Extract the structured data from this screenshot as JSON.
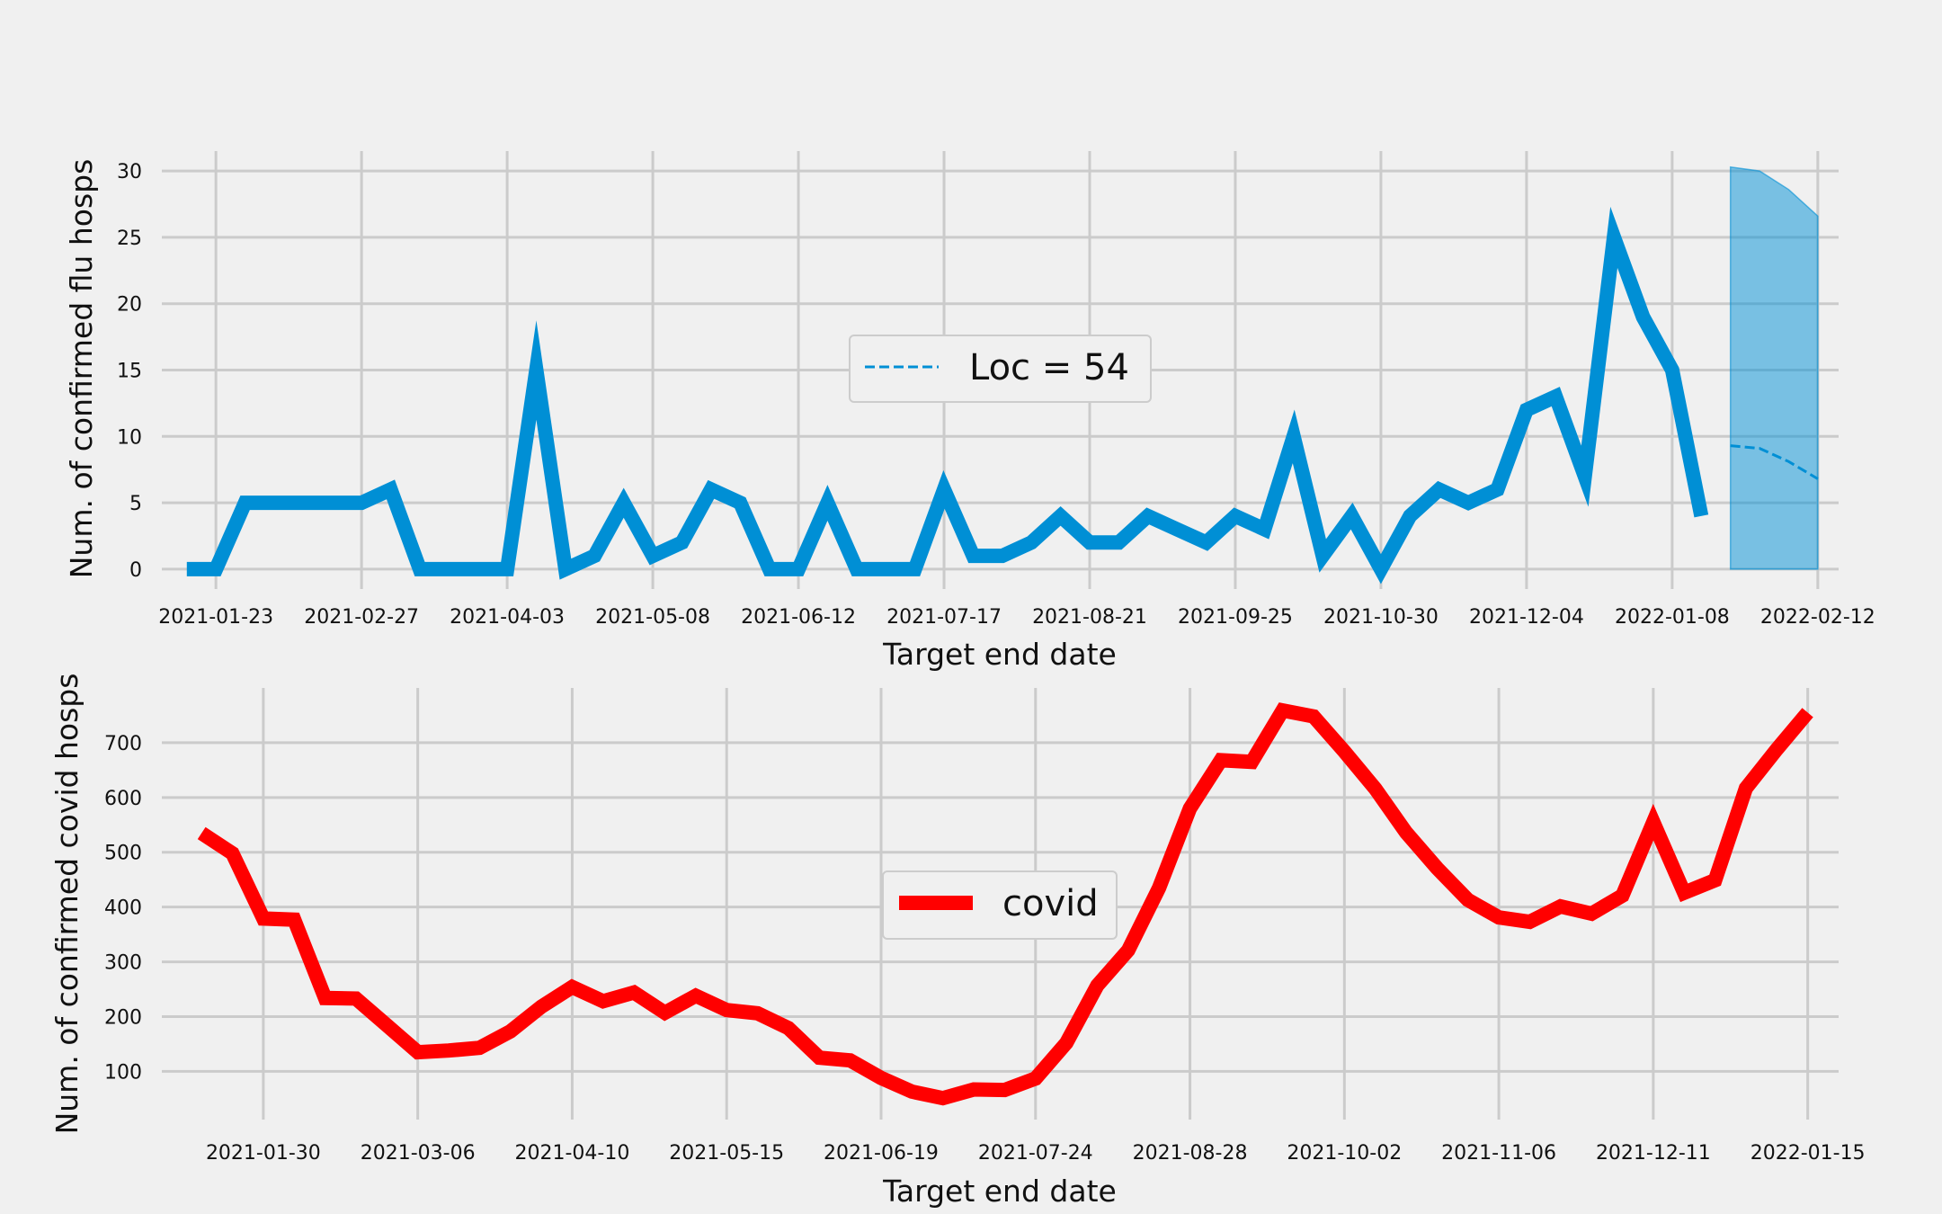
{
  "chart_data": [
    {
      "type": "line",
      "xlabel": "Target end date",
      "ylabel": "Num. of confirmed flu hosps",
      "ylim": [
        -1.5,
        31.5
      ],
      "xlim": [
        "2021-01-10",
        "2022-02-17"
      ],
      "yticks": [
        0,
        5,
        10,
        15,
        20,
        25,
        30
      ],
      "xticks": [
        "2021-01-23",
        "2021-02-27",
        "2021-04-03",
        "2021-05-08",
        "2021-06-12",
        "2021-07-17",
        "2021-08-21",
        "2021-09-25",
        "2021-10-30",
        "2021-12-04",
        "2022-01-08",
        "2022-02-12"
      ],
      "grid": true,
      "legend_position": "center",
      "series": [
        {
          "color": "#008fd5",
          "style": "solid",
          "x": [
            "2021-01-16",
            "2021-01-23",
            "2021-01-30",
            "2021-02-06",
            "2021-02-13",
            "2021-02-20",
            "2021-02-27",
            "2021-03-06",
            "2021-03-13",
            "2021-03-20",
            "2021-03-27",
            "2021-04-03",
            "2021-04-10",
            "2021-04-17",
            "2021-04-24",
            "2021-05-01",
            "2021-05-08",
            "2021-05-15",
            "2021-05-22",
            "2021-05-29",
            "2021-06-05",
            "2021-06-12",
            "2021-06-19",
            "2021-06-26",
            "2021-07-03",
            "2021-07-10",
            "2021-07-17",
            "2021-07-24",
            "2021-07-31",
            "2021-08-07",
            "2021-08-14",
            "2021-08-21",
            "2021-08-28",
            "2021-09-04",
            "2021-09-11",
            "2021-09-18",
            "2021-09-25",
            "2021-10-02",
            "2021-10-09",
            "2021-10-16",
            "2021-10-23",
            "2021-10-30",
            "2021-11-06",
            "2021-11-13",
            "2021-11-20",
            "2021-11-27",
            "2021-12-04",
            "2021-12-11",
            "2021-12-18",
            "2021-12-25",
            "2022-01-01",
            "2022-01-08",
            "2022-01-15"
          ],
          "values": [
            0,
            0,
            5,
            5,
            5,
            5,
            5,
            6,
            0,
            0,
            0,
            0,
            15,
            0,
            1,
            5,
            1,
            2,
            6,
            5,
            0,
            0,
            5,
            0,
            0,
            0,
            6,
            1,
            1,
            2,
            4,
            2,
            2,
            4,
            3,
            2,
            4,
            3,
            10,
            1,
            4,
            0,
            4,
            6,
            5,
            6,
            12,
            13,
            7,
            25,
            19,
            15,
            4
          ]
        },
        {
          "name": "Loc = 54",
          "color": "#008fd5",
          "style": "dashed",
          "x": [
            "2022-01-22",
            "2022-01-29",
            "2022-02-05",
            "2022-02-12"
          ],
          "values": [
            9.3,
            9.1,
            8.1,
            6.8
          ],
          "band_lower": [
            0,
            0,
            0,
            0
          ],
          "band_upper": [
            30.3,
            30.0,
            28.6,
            26.6
          ]
        }
      ]
    },
    {
      "type": "line",
      "xlabel": "Target end date",
      "ylabel": "Num. of confirmed covid hosps",
      "ylim": [
        12,
        800
      ],
      "xlim": [
        "2021-01-07",
        "2022-01-22"
      ],
      "yticks": [
        100,
        200,
        300,
        400,
        500,
        600,
        700
      ],
      "xticks": [
        "2021-01-30",
        "2021-03-06",
        "2021-04-10",
        "2021-05-15",
        "2021-06-19",
        "2021-07-24",
        "2021-08-28",
        "2021-10-02",
        "2021-11-06",
        "2021-12-11",
        "2022-01-15"
      ],
      "grid": true,
      "legend_position": "center",
      "series": [
        {
          "name": "covid",
          "color": "#ff0000",
          "style": "solid",
          "x": [
            "2021-01-16",
            "2021-01-23",
            "2021-01-30",
            "2021-02-06",
            "2021-02-13",
            "2021-02-20",
            "2021-02-27",
            "2021-03-06",
            "2021-03-13",
            "2021-03-20",
            "2021-03-27",
            "2021-04-03",
            "2021-04-10",
            "2021-04-17",
            "2021-04-24",
            "2021-05-01",
            "2021-05-08",
            "2021-05-15",
            "2021-05-22",
            "2021-05-29",
            "2021-06-05",
            "2021-06-12",
            "2021-06-19",
            "2021-06-26",
            "2021-07-03",
            "2021-07-10",
            "2021-07-17",
            "2021-07-24",
            "2021-07-31",
            "2021-08-07",
            "2021-08-14",
            "2021-08-21",
            "2021-08-28",
            "2021-09-04",
            "2021-09-11",
            "2021-09-18",
            "2021-09-25",
            "2021-10-02",
            "2021-10-09",
            "2021-10-16",
            "2021-10-23",
            "2021-10-30",
            "2021-11-06",
            "2021-11-13",
            "2021-11-20",
            "2021-11-27",
            "2021-12-04",
            "2021-12-11",
            "2021-12-18",
            "2021-12-25",
            "2022-01-01",
            "2022-01-08",
            "2022-01-15"
          ],
          "values": [
            535,
            498,
            379,
            377,
            234,
            233,
            184,
            135,
            138,
            143,
            173,
            218,
            254,
            228,
            244,
            207,
            238,
            212,
            206,
            179,
            125,
            120,
            88,
            63,
            51,
            67,
            66,
            87,
            152,
            257,
            321,
            435,
            580,
            668,
            665,
            759,
            748,
            684,
            616,
            536,
            471,
            413,
            381,
            373,
            401,
            388,
            421,
            555,
            426,
            449,
            617,
            688,
            755
          ]
        }
      ]
    }
  ]
}
